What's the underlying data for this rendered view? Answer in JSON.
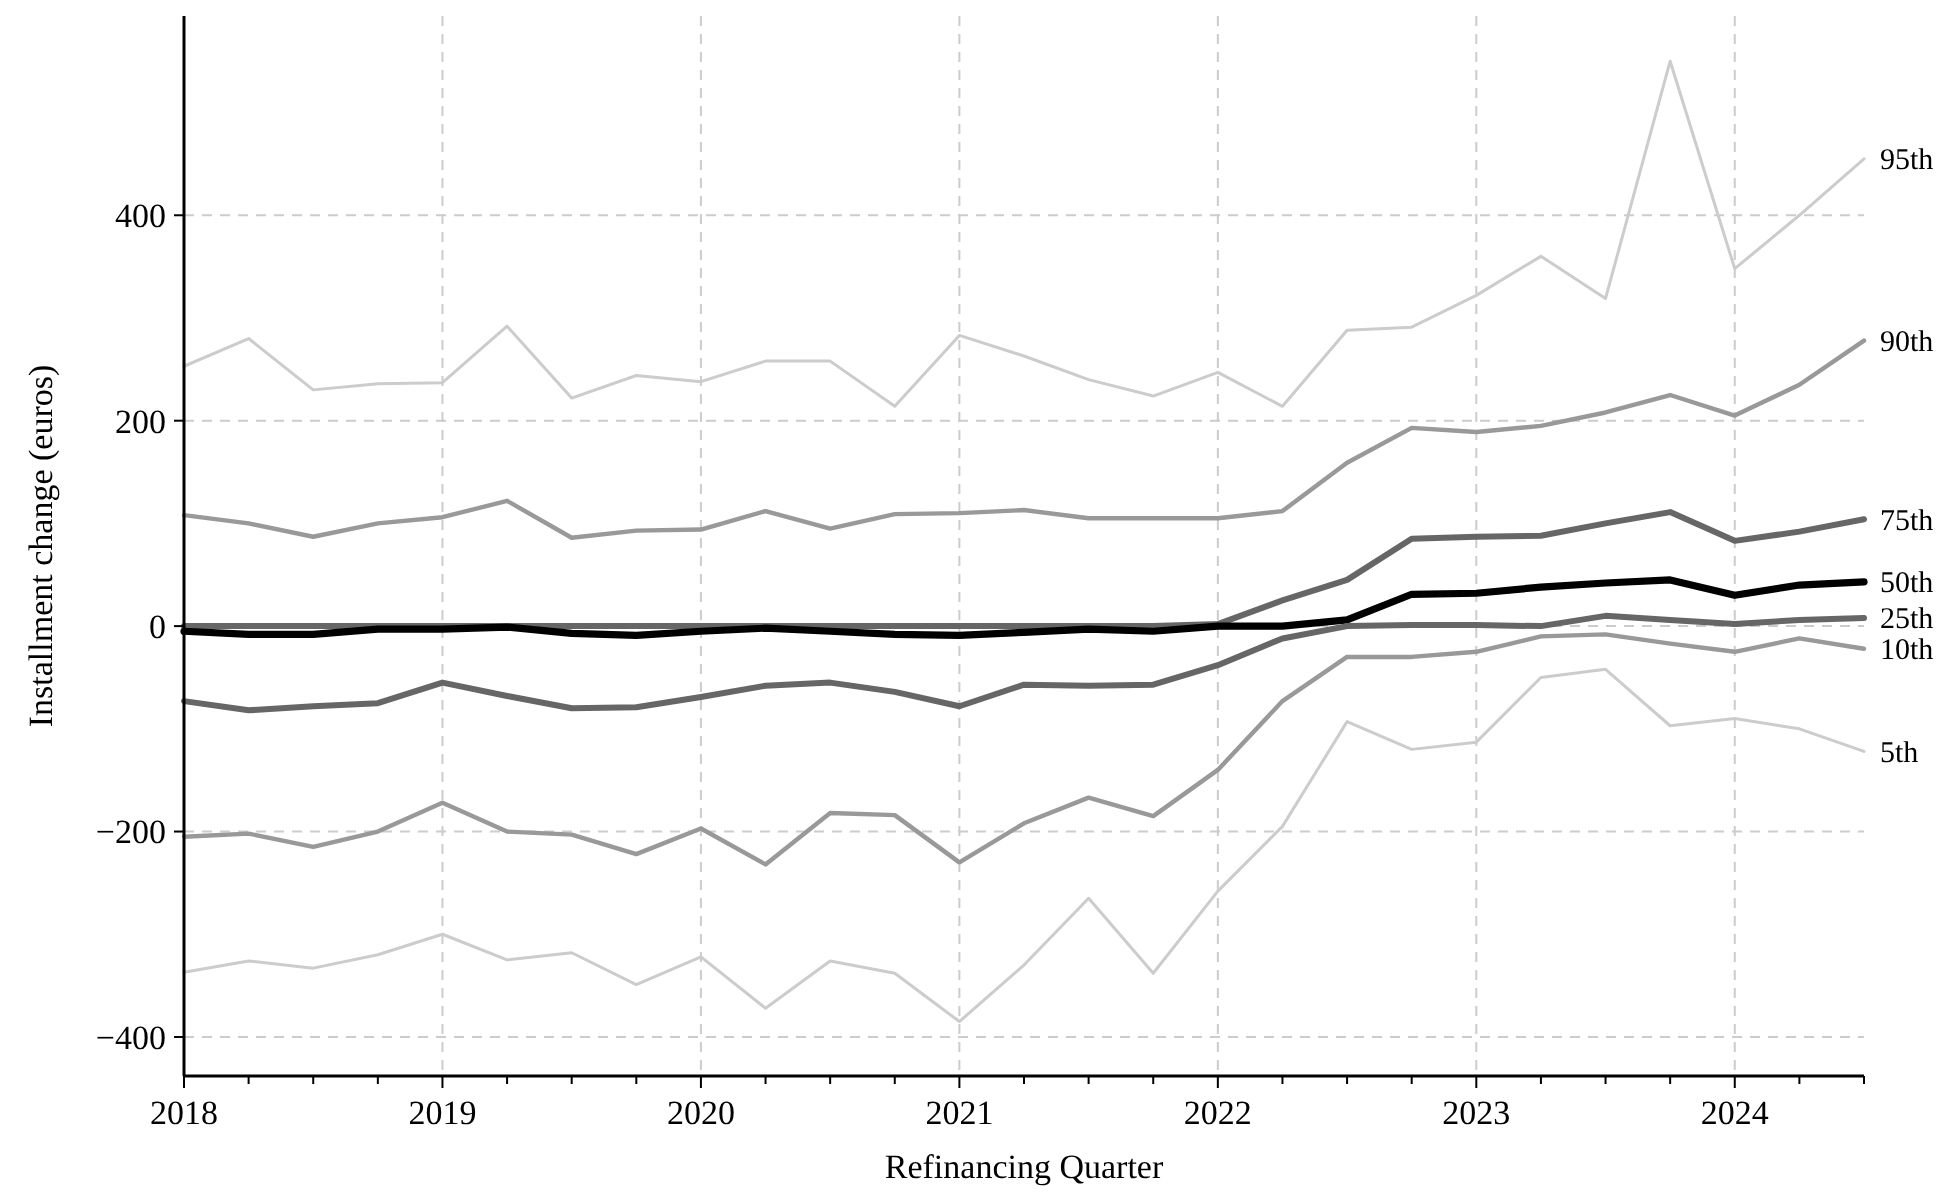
{
  "chart_data": {
    "type": "line",
    "xlabel": "Refinancing Quarter",
    "ylabel": "Installment change (euros)",
    "x": [
      2018,
      2018.25,
      2018.5,
      2018.75,
      2019,
      2019.25,
      2019.5,
      2019.75,
      2020,
      2020.25,
      2020.5,
      2020.75,
      2021,
      2021.25,
      2021.5,
      2021.75,
      2022,
      2022.25,
      2022.5,
      2022.75,
      2023,
      2023.25,
      2023.5,
      2023.75,
      2024,
      2024.25,
      2024.5
    ],
    "xlim": [
      2018,
      2024.5
    ],
    "xticks": [
      2018,
      {
        "value": 2018.25,
        "label": null
      },
      {
        "value": 2018.5,
        "label": null
      },
      {
        "value": 2018.75,
        "label": null
      },
      2019,
      {
        "value": 2019.25,
        "label": null
      },
      {
        "value": 2019.5,
        "label": null
      },
      {
        "value": 2019.75,
        "label": null
      },
      2020,
      {
        "value": 2020.25,
        "label": null
      },
      {
        "value": 2020.5,
        "label": null
      },
      {
        "value": 2020.75,
        "label": null
      },
      2021,
      {
        "value": 2021.25,
        "label": null
      },
      {
        "value": 2021.5,
        "label": null
      },
      {
        "value": 2021.75,
        "label": null
      },
      2022,
      {
        "value": 2022.25,
        "label": null
      },
      {
        "value": 2022.5,
        "label": null
      },
      {
        "value": 2022.75,
        "label": null
      },
      2023,
      {
        "value": 2023.25,
        "label": null
      },
      {
        "value": 2023.5,
        "label": null
      },
      {
        "value": 2023.75,
        "label": null
      },
      2024,
      {
        "value": 2024.25,
        "label": null
      },
      {
        "value": 2024.5,
        "label": null
      }
    ],
    "ylim": [
      -438,
      594
    ],
    "yticks": [
      {
        "value": -400,
        "label": "−400"
      },
      {
        "value": -200,
        "label": "−200"
      },
      0,
      200,
      400
    ],
    "grid": true,
    "legend": false,
    "line_style": "solid",
    "marker": "none",
    "series": [
      {
        "name": "95th",
        "color": "#cccccc",
        "values": [
          253,
          280,
          230,
          236,
          237,
          292,
          222,
          244,
          238,
          258,
          258,
          214,
          283,
          263,
          240,
          224,
          247,
          214,
          288,
          291,
          322,
          360,
          319,
          550,
          348,
          400,
          455
        ]
      },
      {
        "name": "90th",
        "color": "#999999",
        "values": [
          108,
          100,
          87,
          100,
          106,
          122,
          86,
          93,
          94,
          112,
          95,
          109,
          110,
          113,
          105,
          105,
          105,
          112,
          159,
          193,
          189,
          195,
          208,
          225,
          205,
          235,
          278
        ]
      },
      {
        "name": "75th",
        "color": "#666666",
        "values": [
          0,
          0,
          0,
          0,
          0,
          0,
          0,
          0,
          0,
          0,
          0,
          0,
          0,
          0,
          0,
          0,
          2,
          25,
          45,
          85,
          87,
          88,
          100,
          111,
          83,
          92,
          104
        ]
      },
      {
        "name": "50th",
        "color": "#000000",
        "values": [
          -5,
          -8,
          -8,
          -3,
          -3,
          -1,
          -7,
          -9,
          -5,
          -2,
          -5,
          -8,
          -9,
          -6,
          -3,
          -5,
          0,
          0,
          6,
          31,
          32,
          38,
          42,
          45,
          30,
          40,
          43
        ]
      },
      {
        "name": "25th",
        "color": "#666666",
        "values": [
          -73,
          -82,
          -78,
          -75,
          -55,
          -68,
          -80,
          -79,
          -69,
          -58,
          -55,
          -64,
          -78,
          -57,
          -58,
          -57,
          -38,
          -12,
          0,
          1,
          1,
          0,
          10,
          6,
          2,
          6,
          8
        ]
      },
      {
        "name": "10th",
        "color": "#999999",
        "values": [
          -205,
          -202,
          -215,
          -200,
          -172,
          -200,
          -203,
          -222,
          -197,
          -232,
          -182,
          -184,
          -230,
          -192,
          -167,
          -185,
          -140,
          -73,
          -30,
          -30,
          -25,
          -10,
          -8,
          -17,
          -25,
          -12,
          -22
        ]
      },
      {
        "name": "5th",
        "color": "#cccccc",
        "values": [
          -337,
          -326,
          -333,
          -320,
          -300,
          -325,
          -318,
          -349,
          -322,
          -372,
          -326,
          -338,
          -385,
          -330,
          -265,
          -338,
          -258,
          -195,
          -93,
          -120,
          -113,
          -50,
          -42,
          -97,
          -90,
          -100,
          -122
        ]
      }
    ]
  }
}
